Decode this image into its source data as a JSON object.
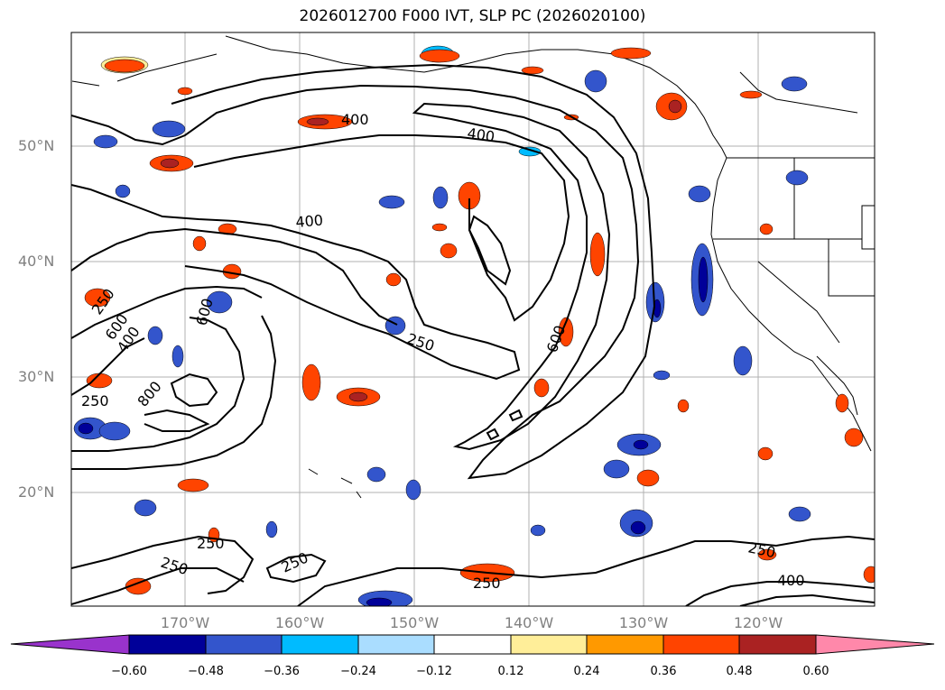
{
  "title": "2026012700 F000 IVT, SLP PC (2026020100)",
  "latitude_labels": [
    "50°N",
    "40°N",
    "30°N",
    "20°N"
  ],
  "longitude_labels": [
    "170°W",
    "160°W",
    "150°W",
    "140°W",
    "130°W",
    "120°W"
  ],
  "contour_labels": [
    "400",
    "400",
    "400",
    "250",
    "250",
    "600",
    "400",
    "600",
    "800",
    "250",
    "600",
    "250",
    "250",
    "250",
    "250",
    "250",
    "400"
  ],
  "colorbar": {
    "ticks": [
      "−0.60",
      "−0.48",
      "−0.36",
      "−0.24",
      "−0.12",
      "0.12",
      "0.24",
      "0.36",
      "0.48",
      "0.60"
    ],
    "colors": [
      "#9933cc",
      "#000099",
      "#3355cc",
      "#00bbff",
      "#aaddff",
      "#ffffff",
      "#ffee99",
      "#ff9900",
      "#ff4400",
      "#aa2222",
      "#ff88aa"
    ]
  },
  "colors": {
    "neg_dark": "#000099",
    "neg_mid": "#3355cc",
    "neg_light": "#00bbff",
    "neg_pale": "#aaddff",
    "pos_pale": "#ffee99",
    "pos_mid": "#ff9900",
    "pos_strong": "#ff4400",
    "pos_dark": "#aa2222",
    "grid": "#b0b0b0",
    "axis_text": "#808080"
  }
}
